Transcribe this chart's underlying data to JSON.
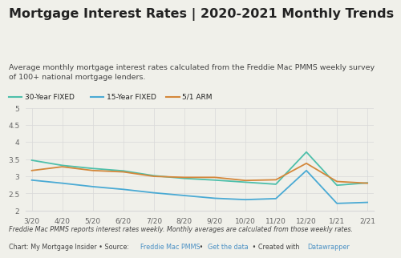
{
  "title": "Mortgage Interest Rates | 2020-2021 Monthly Trends",
  "subtitle": "Average monthly mortgage interest rates calculated from the Freddie Mac PMMS weekly survey\nof 100+ national mortgage lenders.",
  "footnote1": "Freddie Mac PMMS reports interest rates weekly. Monthly averages are calculated from those weekly rates.",
  "footnote2_plain1": "Chart: My Mortgage Insider • Source: ",
  "footnote2_link1": "Freddie Mac PMMS",
  "footnote2_sep1": " • ",
  "footnote2_link2": "Get the data",
  "footnote2_plain2": " • Created with ",
  "footnote2_link3": "Datawrapper",
  "x_labels": [
    "3/20",
    "4/20",
    "5/20",
    "6/20",
    "7/20",
    "8/20",
    "9/20",
    "10/20",
    "11/20",
    "12/20",
    "1/21",
    "2/21"
  ],
  "thirty_year": [
    3.47,
    3.32,
    3.23,
    3.16,
    3.02,
    2.94,
    2.89,
    2.83,
    2.77,
    3.71,
    2.74,
    2.81
  ],
  "fifteen_year": [
    2.89,
    2.8,
    2.7,
    2.62,
    2.52,
    2.44,
    2.36,
    2.32,
    2.35,
    3.17,
    2.21,
    2.24
  ],
  "arm_51": [
    3.17,
    3.28,
    3.17,
    3.13,
    3.0,
    2.97,
    2.97,
    2.88,
    2.9,
    3.38,
    2.85,
    2.8
  ],
  "color_30yr": "#4dbfaa",
  "color_15yr": "#4aaad4",
  "color_arm": "#d4873a",
  "background_color": "#f0f0ea",
  "ylim": [
    2.0,
    5.0
  ],
  "yticks": [
    2.0,
    2.5,
    3.0,
    3.5,
    4.0,
    4.5,
    5.0
  ],
  "legend_labels": [
    "30-Year FIXED",
    "15-Year FIXED",
    "5/1 ARM"
  ],
  "title_fontsize": 11.5,
  "subtitle_fontsize": 6.8,
  "legend_fontsize": 6.5,
  "axis_fontsize": 6.5,
  "footnote_fontsize": 5.8,
  "link_color": "#4a90c4",
  "text_dark": "#222222",
  "text_mid": "#444444",
  "text_light": "#666666",
  "grid_color": "#d8d8d8"
}
